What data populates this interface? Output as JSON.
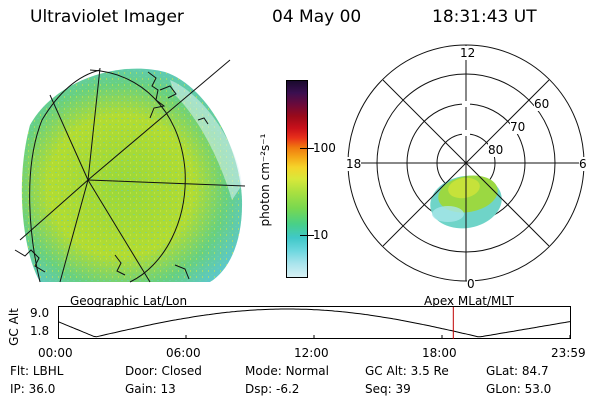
{
  "header": {
    "instrument": "Ultraviolet Imager",
    "date": "04 May 00",
    "time": "18:31:43 UT"
  },
  "colorbar": {
    "unit_label": "photon cm⁻²s⁻¹",
    "ticks": [
      {
        "label": "100",
        "value": 100
      },
      {
        "label": "10",
        "value": 10
      }
    ],
    "colors": [
      "#1a0a2e",
      "#3a0f50",
      "#6b0a3a",
      "#9a0a1a",
      "#c8101a",
      "#e8301a",
      "#f07a0f",
      "#f5a818",
      "#f5d42a",
      "#d8e83a",
      "#a8e040",
      "#78d850",
      "#48d088",
      "#40c8c8",
      "#70d8e0",
      "#a8e4ec",
      "#d8f0f4"
    ]
  },
  "left_panel": {
    "label": "Geographic Lat/Lon"
  },
  "right_panel": {
    "label": "Apex MLat/MLT",
    "mlt_labels": {
      "top": "12",
      "left": "18",
      "right": "6",
      "bottom": "0"
    },
    "mlat_labels": [
      "60",
      "70",
      "80"
    ]
  },
  "altitude_plot": {
    "axis_label": "GC Alt",
    "ymax_label": "9.0",
    "ymin_label": "1.8",
    "x_labels": [
      "00:00",
      "06:00",
      "12:00",
      "18:00",
      "23:59"
    ],
    "current_time_hours": 18.53
  },
  "info": {
    "row1": [
      {
        "label": "Flt:",
        "value": "LBHL"
      },
      {
        "label": "Door:",
        "value": "Closed"
      },
      {
        "label": "Mode:",
        "value": "Normal"
      },
      {
        "label": "GC Alt:",
        "value": "3.5 Re"
      },
      {
        "label": "GLat:",
        "value": "84.7"
      }
    ],
    "row2": [
      {
        "label": "IP:",
        "value": "36.0"
      },
      {
        "label": "Gain:",
        "value": "13"
      },
      {
        "label": "Dsp:",
        "value": "-6.2"
      },
      {
        "label": "Seq:",
        "value": "39"
      },
      {
        "label": "GLon:",
        "value": "53.0"
      }
    ]
  }
}
